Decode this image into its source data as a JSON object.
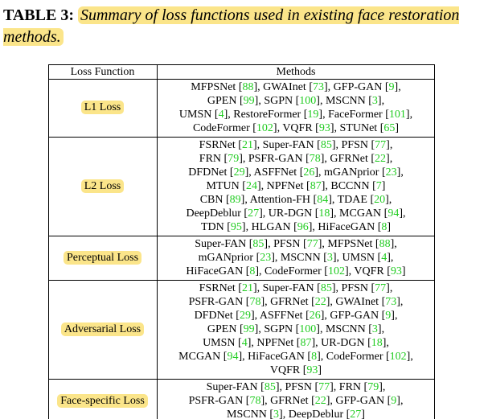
{
  "header": {
    "label": "TABLE 3:",
    "caption": "Summary of loss functions used in existing face restoration methods."
  },
  "table": {
    "columns": [
      "Loss Function",
      "Methods"
    ],
    "rows": [
      {
        "loss": "L1 Loss",
        "methods": [
          "MFPSNet [88], GWAInet [73], GFP-GAN [9],",
          "GPEN [99], SGPN [100], MSCNN [3],",
          "UMSN [4], RestoreFormer [19], FaceFormer [101],",
          "CodeFormer [102], VQFR [93], STUNet [65]"
        ]
      },
      {
        "loss": "L2 Loss",
        "methods": [
          "FSRNet [21], Super-FAN [85], PFSN [77],",
          "FRN [79], PSFR-GAN [78], GFRNet [22],",
          "DFDNet [29], ASFFNet [26], mGANprior [23],",
          "MTUN [24], NPFNet [87], BCCNN [7]",
          "CBN [89], Attention-FH [84], TDAE [20],",
          "DeepDeblur [27], UR-DGN [18], MCGAN [94],",
          "TDN [95], HLGAN [96], HiFaceGAN [8]"
        ]
      },
      {
        "loss": "Perceptual Loss",
        "methods": [
          "Super-FAN [85], PFSN [77], MFPSNet [88],",
          "mGANprior [23], MSCNN [3], UMSN [4],",
          "HiFaceGAN [8], CodeFormer [102], VQFR [93]"
        ]
      },
      {
        "loss": "Adversarial Loss",
        "methods": [
          "FSRNet [21], Super-FAN [85], PFSN [77],",
          "PSFR-GAN [78], GFRNet [22], GWAInet [73],",
          "DFDNet [29], ASFFNet [26], GFP-GAN [9],",
          "GPEN [99], SGPN [100], MSCNN [3],",
          "UMSN [4], NPFNet [87], UR-DGN [18],",
          "MCGAN [94], HiFaceGAN [8], CodeFormer [102],",
          "VQFR [93]"
        ]
      },
      {
        "loss": "Face-specific Loss",
        "methods": [
          "Super-FAN [85], PFSN [77], FRN [79],",
          "PSFR-GAN [78], GFRNet [22], GFP-GAN [9],",
          "MSCNN [3], DeepDeblur [27]"
        ]
      }
    ]
  }
}
